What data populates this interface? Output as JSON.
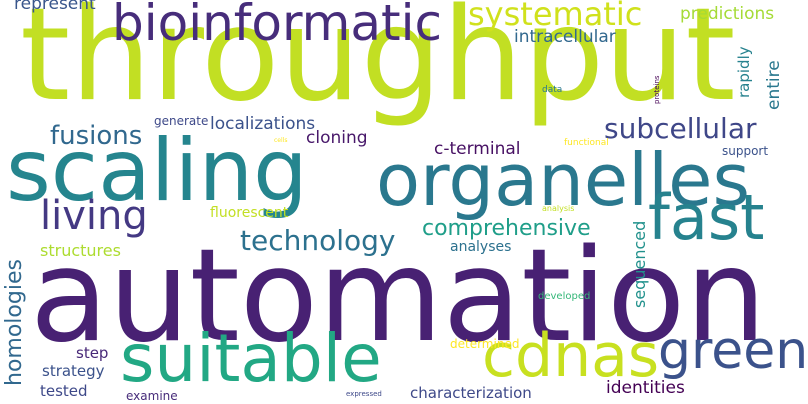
{
  "words": {
    "throughput": "throughput",
    "automation": "automation",
    "scaling": "scaling",
    "organelles": "organelles",
    "bioinformatic": "bioinformatic",
    "suitable": "suitable",
    "cdnas": "cdnas",
    "fast": "fast",
    "green": "green",
    "systematic": "systematic",
    "living": "living",
    "subcellular": "subcellular",
    "fusions": "fusions",
    "technology": "technology",
    "comprehensive": "comprehensive",
    "homologies": "homologies",
    "intracellular": "intracellular",
    "predictions": "predictions",
    "represent": "represent",
    "localizations": "localizations",
    "cloning": "cloning",
    "c_terminal": "c-terminal",
    "fluorescent": "fluorescent",
    "structures": "structures",
    "analyses": "analyses",
    "sequenced": "sequenced",
    "identities": "identities",
    "characterization": "characterization",
    "strategy": "strategy",
    "tested": "tested",
    "step": "step",
    "examine": "examine",
    "generate": "generate",
    "support": "support",
    "entire": "entire",
    "rapidly": "rapidly",
    "developed": "developed",
    "determined": "determined",
    "functional": "functional",
    "data": "data",
    "proteins": "proteins",
    "analysis": "analysis",
    "cells": "cells",
    "expressed": "expressed"
  },
  "colors": {
    "background": "#ffffff",
    "palette": [
      "#440154",
      "#482878",
      "#3e4989",
      "#31688e",
      "#26828e",
      "#1f9e89",
      "#35b779",
      "#6ece58",
      "#b5de2b",
      "#fde725"
    ]
  }
}
